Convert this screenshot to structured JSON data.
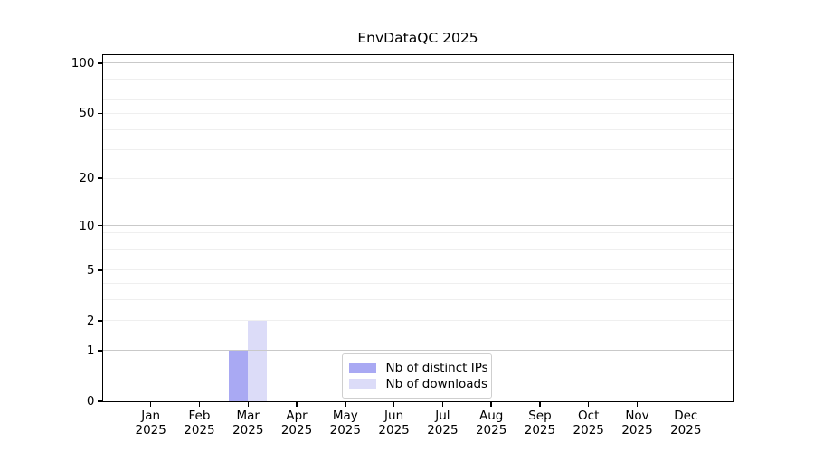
{
  "page": {
    "background": "#ffffff"
  },
  "chart_data": {
    "type": "bar",
    "title": "EnvDataQC 2025",
    "categories": [
      "Jan",
      "Feb",
      "Mar",
      "Apr",
      "May",
      "Jun",
      "Jul",
      "Aug",
      "Sep",
      "Oct",
      "Nov",
      "Dec"
    ],
    "category_sublabel": "2025",
    "series": [
      {
        "name": "Nb of distinct IPs",
        "color": "#a9a9f3",
        "values": [
          0,
          0,
          1,
          0,
          0,
          0,
          0,
          0,
          0,
          0,
          0,
          0
        ]
      },
      {
        "name": "Nb of downloads",
        "color": "#dcdcf8",
        "values": [
          0,
          0,
          2,
          0,
          0,
          0,
          0,
          0,
          0,
          0,
          0,
          0
        ]
      }
    ],
    "xlabel": "",
    "ylabel": "",
    "yscale": "log1p",
    "ylim": [
      0,
      111.8
    ],
    "yticks": [
      0,
      1,
      2,
      5,
      10,
      20,
      50,
      100
    ],
    "major_gridlines": [
      1,
      10,
      100
    ],
    "minor_gridlines": [
      2,
      3,
      4,
      5,
      6,
      7,
      8,
      9,
      20,
      30,
      40,
      50,
      60,
      70,
      80,
      90
    ],
    "grid": true,
    "legend_position": "lower center",
    "colors": {
      "axis": "#000000",
      "text": "#000000",
      "major_grid": "#c9c9c9",
      "minor_grid": "#efefef",
      "legend_border": "#cfcfcf"
    }
  }
}
